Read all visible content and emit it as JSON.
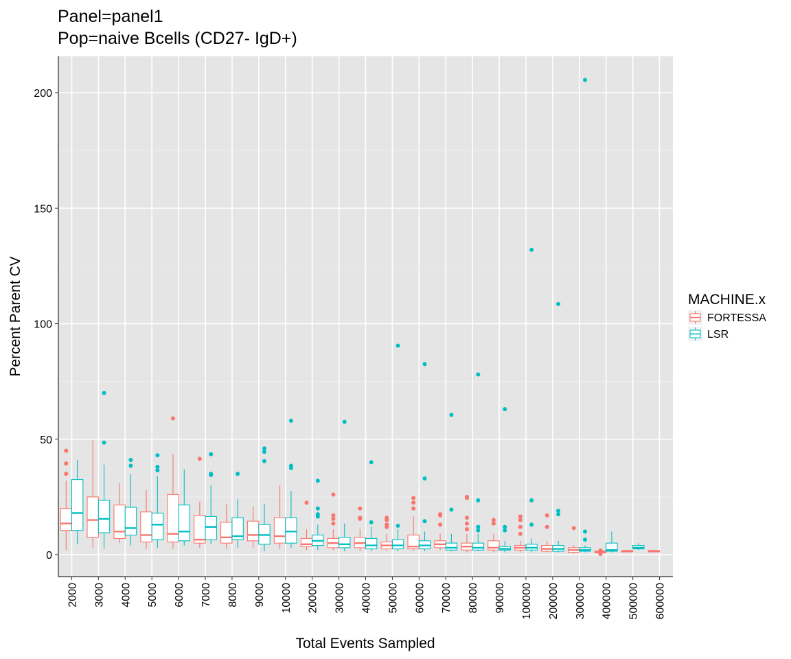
{
  "chart_data": {
    "type": "boxplot",
    "title": "Panel=panel1",
    "subtitle": "Pop=naive Bcells (CD27- IgD+)",
    "xlabel": "Total Events Sampled",
    "ylabel": "Percent Parent CV",
    "ylim": [
      -10,
      216
    ],
    "yticks": [
      0,
      50,
      100,
      150,
      200
    ],
    "grid": true,
    "legend": {
      "title": "MACHINE.x",
      "position": "right",
      "entries": [
        "FORTESSA",
        "LSR"
      ]
    },
    "categories": [
      "2000",
      "3000",
      "4000",
      "5000",
      "6000",
      "7000",
      "8000",
      "9000",
      "10000",
      "20000",
      "30000",
      "40000",
      "50000",
      "60000",
      "70000",
      "80000",
      "90000",
      "100000",
      "200000",
      "300000",
      "400000",
      "500000",
      "600000"
    ],
    "series": [
      {
        "name": "FORTESSA",
        "color": "#F8766D",
        "boxes": [
          {
            "q1": 10.5,
            "median": 13.5,
            "q3": 20,
            "lo": 2,
            "hi": 32,
            "outliers": [
              35,
              39.5,
              45
            ]
          },
          {
            "q1": 7.5,
            "median": 15,
            "q3": 25,
            "lo": 3,
            "hi": 49.5,
            "outliers": []
          },
          {
            "q1": 7,
            "median": 10,
            "q3": 21.5,
            "lo": 5,
            "hi": 31,
            "outliers": []
          },
          {
            "q1": 5.5,
            "median": 8.5,
            "q3": 18.5,
            "lo": 2.5,
            "hi": 28,
            "outliers": []
          },
          {
            "q1": 5.5,
            "median": 9,
            "q3": 26,
            "lo": 2.5,
            "hi": 43.5,
            "outliers": [
              59
            ]
          },
          {
            "q1": 5,
            "median": 6.5,
            "q3": 17,
            "lo": 3,
            "hi": 23,
            "outliers": [
              41.5
            ]
          },
          {
            "q1": 5,
            "median": 7.5,
            "q3": 14,
            "lo": 2.5,
            "hi": 22,
            "outliers": []
          },
          {
            "q1": 6,
            "median": 8.5,
            "q3": 14.5,
            "lo": 3,
            "hi": 21,
            "outliers": []
          },
          {
            "q1": 5,
            "median": 8,
            "q3": 16,
            "lo": 2.5,
            "hi": 30,
            "outliers": []
          },
          {
            "q1": 3.5,
            "median": 4.5,
            "q3": 7,
            "lo": 2,
            "hi": 11,
            "outliers": [
              22.5
            ]
          },
          {
            "q1": 3,
            "median": 5,
            "q3": 7,
            "lo": 2,
            "hi": 11,
            "outliers": [
              13.5,
              15.5,
              17,
              26
            ]
          },
          {
            "q1": 3,
            "median": 5,
            "q3": 7.5,
            "lo": 1.5,
            "hi": 11,
            "outliers": [
              15.5,
              16,
              20
            ]
          },
          {
            "q1": 2.5,
            "median": 4,
            "q3": 5.5,
            "lo": 1.5,
            "hi": 9,
            "outliers": [
              12,
              13,
              15,
              16
            ]
          },
          {
            "q1": 2.5,
            "median": 3.5,
            "q3": 8.5,
            "lo": 1.5,
            "hi": 16.5,
            "outliers": [
              20,
              22.5,
              24.5
            ]
          },
          {
            "q1": 3,
            "median": 4.5,
            "q3": 6,
            "lo": 2,
            "hi": 9,
            "outliers": [
              13,
              17,
              17.5
            ]
          },
          {
            "q1": 2,
            "median": 3.5,
            "q3": 5,
            "lo": 1,
            "hi": 9,
            "outliers": [
              11,
              13.5,
              16,
              24.5,
              25
            ]
          },
          {
            "q1": 2,
            "median": 3,
            "q3": 6,
            "lo": 1,
            "hi": 9,
            "outliers": [
              13.5,
              15
            ]
          },
          {
            "q1": 2,
            "median": 3,
            "q3": 4,
            "lo": 1,
            "hi": 6,
            "outliers": [
              9,
              12,
              15,
              16.5
            ]
          },
          {
            "q1": 1.5,
            "median": 2.5,
            "q3": 4,
            "lo": 1,
            "hi": 6,
            "outliers": [
              12,
              17
            ]
          },
          {
            "q1": 1,
            "median": 2,
            "q3": 3,
            "lo": 0.5,
            "hi": 4,
            "outliers": [
              11.5
            ]
          },
          {
            "q1": 0.8,
            "median": 1.2,
            "q3": 1.6,
            "lo": 0.3,
            "hi": 2,
            "outliers": [
              0.3,
              1.8
            ]
          },
          {
            "q1": 1.2,
            "median": 1.5,
            "q3": 1.8,
            "lo": 1,
            "hi": 2,
            "outliers": []
          },
          {
            "q1": 1.2,
            "median": 1.5,
            "q3": 1.8,
            "lo": 1,
            "hi": 2,
            "outliers": []
          }
        ]
      },
      {
        "name": "LSR",
        "color": "#00BFC4",
        "boxes": [
          {
            "q1": 10.5,
            "median": 18,
            "q3": 32.5,
            "lo": 4.5,
            "hi": 41,
            "outliers": []
          },
          {
            "q1": 9.5,
            "median": 15.5,
            "q3": 23.5,
            "lo": 2.5,
            "hi": 39,
            "outliers": [
              48.5,
              70
            ]
          },
          {
            "q1": 8.5,
            "median": 11.5,
            "q3": 20.5,
            "lo": 4,
            "hi": 35,
            "outliers": [
              38.5,
              41
            ]
          },
          {
            "q1": 6.5,
            "median": 13,
            "q3": 18,
            "lo": 3,
            "hi": 34,
            "outliers": [
              36.5,
              38,
              43
            ]
          },
          {
            "q1": 6,
            "median": 10,
            "q3": 21.5,
            "lo": 4,
            "hi": 37,
            "outliers": []
          },
          {
            "q1": 6.5,
            "median": 12,
            "q3": 16.5,
            "lo": 4.5,
            "hi": 30,
            "outliers": [
              34.5,
              35,
              43.5
            ]
          },
          {
            "q1": 6.5,
            "median": 8,
            "q3": 16,
            "lo": 3,
            "hi": 24,
            "outliers": [
              35
            ]
          },
          {
            "q1": 4.5,
            "median": 8.5,
            "q3": 13,
            "lo": 1.5,
            "hi": 22,
            "outliers": [
              40.5,
              44.5,
              46
            ]
          },
          {
            "q1": 5,
            "median": 10,
            "q3": 16,
            "lo": 3,
            "hi": 27.5,
            "outliers": [
              37.5,
              38.5,
              58
            ]
          },
          {
            "q1": 4,
            "median": 6,
            "q3": 8.5,
            "lo": 2,
            "hi": 13,
            "outliers": [
              16.5,
              17.5,
              20,
              32
            ]
          },
          {
            "q1": 3,
            "median": 4.5,
            "q3": 7.5,
            "lo": 1.5,
            "hi": 13.5,
            "outliers": [
              57.5
            ]
          },
          {
            "q1": 2.5,
            "median": 4,
            "q3": 7,
            "lo": 1.5,
            "hi": 12,
            "outliers": [
              14,
              40
            ]
          },
          {
            "q1": 2.5,
            "median": 4,
            "q3": 6.5,
            "lo": 1.5,
            "hi": 11,
            "outliers": [
              12.5,
              90.5
            ]
          },
          {
            "q1": 2.5,
            "median": 4,
            "q3": 6,
            "lo": 1.5,
            "hi": 10,
            "outliers": [
              14.5,
              33,
              82.5
            ]
          },
          {
            "q1": 2,
            "median": 3,
            "q3": 5,
            "lo": 1.5,
            "hi": 9,
            "outliers": [
              19.5,
              60.5
            ]
          },
          {
            "q1": 2,
            "median": 3,
            "q3": 5,
            "lo": 1.5,
            "hi": 9,
            "outliers": [
              10.5,
              12,
              23.5,
              78
            ]
          },
          {
            "q1": 2,
            "median": 2.5,
            "q3": 3.5,
            "lo": 1,
            "hi": 6,
            "outliers": [
              10.5,
              12,
              63
            ]
          },
          {
            "q1": 2,
            "median": 3,
            "q3": 4.5,
            "lo": 1,
            "hi": 7,
            "outliers": [
              13,
              23.5,
              132
            ]
          },
          {
            "q1": 1.5,
            "median": 2.5,
            "q3": 4,
            "lo": 1,
            "hi": 6,
            "outliers": [
              17.5,
              19,
              108.5
            ]
          },
          {
            "q1": 1.5,
            "median": 2,
            "q3": 3,
            "lo": 1,
            "hi": 4,
            "outliers": [
              6.5,
              10,
              205.5
            ]
          },
          {
            "q1": 1.5,
            "median": 2,
            "q3": 5,
            "lo": 1,
            "hi": 10,
            "outliers": []
          },
          {
            "q1": 2.5,
            "median": 3,
            "q3": 4,
            "lo": 2,
            "hi": 5,
            "outliers": []
          },
          null
        ]
      }
    ]
  }
}
